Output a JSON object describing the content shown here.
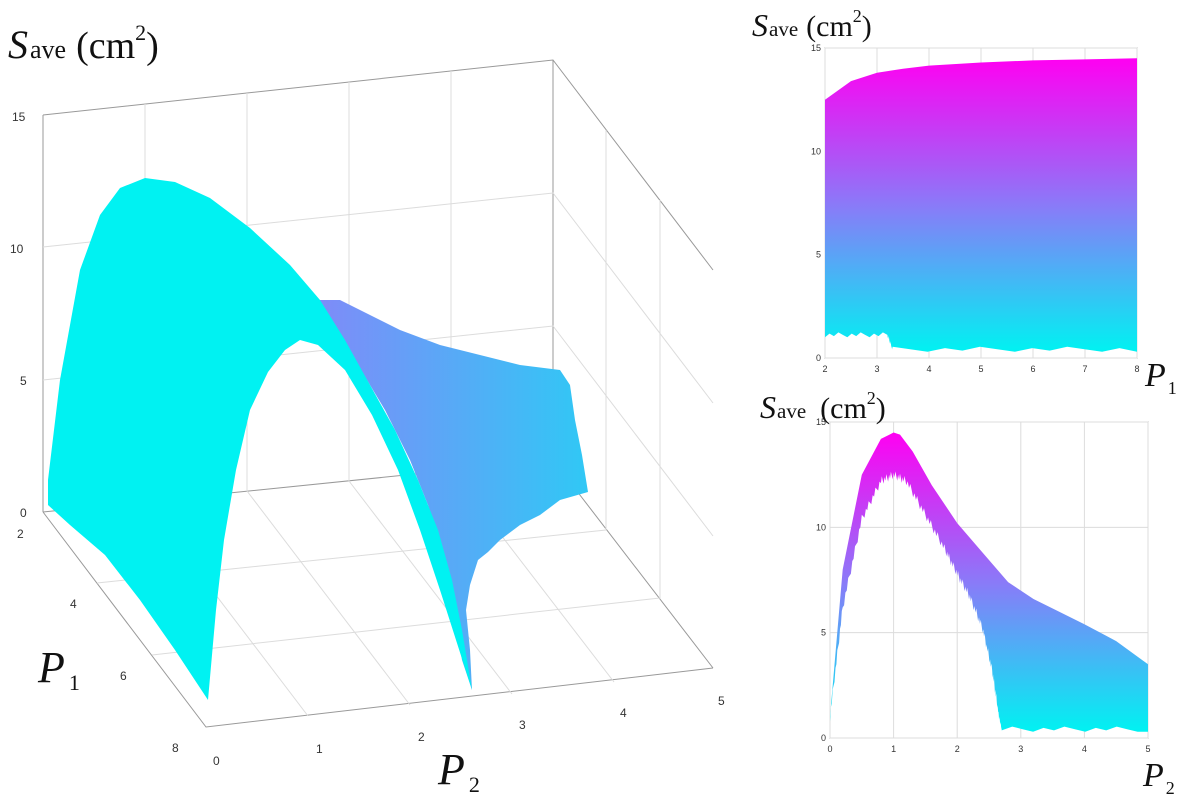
{
  "colors": {
    "high": "#ff00f2",
    "mid": "#8a7af8",
    "low": "#00f2f2"
  },
  "chart_data": [
    {
      "id": "surface3d",
      "type": "surface",
      "zlabel": {
        "main": "S",
        "sub": "ave",
        "unit": "(cm",
        "sup": "2",
        "close": ")"
      },
      "xlabel": {
        "main": "P",
        "sub": "1"
      },
      "ylabel": {
        "main": "P",
        "sub": "2"
      },
      "x_ticks": [
        "2",
        "4",
        "6",
        "8"
      ],
      "y_ticks": [
        "0",
        "1",
        "2",
        "3",
        "4",
        "5"
      ],
      "z_ticks": [
        "0",
        "5",
        "10",
        "15"
      ],
      "xlim": [
        2,
        8
      ],
      "ylim": [
        0,
        5
      ],
      "zlim": [
        0,
        15
      ],
      "grid": true,
      "ridge_peak": {
        "P2": 1.1,
        "S_ave_min": 12.3,
        "S_ave_max": 14.5
      }
    },
    {
      "id": "side_p1",
      "type": "area",
      "ylabel": {
        "main": "S",
        "sub": "ave",
        "unit": "(cm",
        "sup": "2",
        "close": ")"
      },
      "xlabel": {
        "main": "P",
        "sub": "1"
      },
      "x_ticks": [
        "2",
        "3",
        "4",
        "5",
        "6",
        "7",
        "8"
      ],
      "y_ticks": [
        "0",
        "5",
        "10",
        "15"
      ],
      "xlim": [
        2,
        8
      ],
      "ylim": [
        0,
        15
      ],
      "grid": true,
      "upper": {
        "x": [
          2,
          2.5,
          3,
          3.5,
          4,
          5,
          6,
          7,
          8
        ],
        "y": [
          12.5,
          13.4,
          13.8,
          14.0,
          14.15,
          14.3,
          14.4,
          14.45,
          14.5
        ]
      },
      "lower": {
        "x": [
          2,
          3.2,
          3.3,
          8
        ],
        "y": [
          1.0,
          1.0,
          0.3,
          0.3
        ]
      }
    },
    {
      "id": "side_p2",
      "type": "area",
      "ylabel": {
        "main": "S",
        "sub": "ave",
        "unit": "(cm",
        "sup": "2",
        "close": ")"
      },
      "xlabel": {
        "main": "P",
        "sub": "2"
      },
      "x_ticks": [
        "0",
        "1",
        "2",
        "3",
        "4",
        "5"
      ],
      "y_ticks": [
        "0",
        "5",
        "10",
        "15"
      ],
      "xlim": [
        0,
        5
      ],
      "ylim": [
        0,
        15
      ],
      "grid": true,
      "upper": {
        "x": [
          0,
          0.2,
          0.5,
          0.8,
          1.0,
          1.1,
          1.3,
          1.6,
          2.0,
          2.4,
          2.8,
          3.2,
          3.6,
          4.0,
          4.5,
          5.0
        ],
        "y": [
          1.0,
          8.0,
          12.5,
          14.2,
          14.5,
          14.4,
          13.6,
          12.0,
          10.2,
          8.8,
          7.4,
          6.6,
          6.0,
          5.4,
          4.6,
          3.5
        ]
      },
      "lower": {
        "x": [
          0,
          0.2,
          0.5,
          0.8,
          1.0,
          1.2,
          1.5,
          1.8,
          2.0,
          2.2,
          2.4,
          2.55,
          2.65,
          2.7,
          5.0
        ],
        "y": [
          0.8,
          6.0,
          10.2,
          12.0,
          12.3,
          12.0,
          10.4,
          8.8,
          7.6,
          6.5,
          5.0,
          3.0,
          1.0,
          0.3,
          0.3
        ]
      }
    }
  ]
}
